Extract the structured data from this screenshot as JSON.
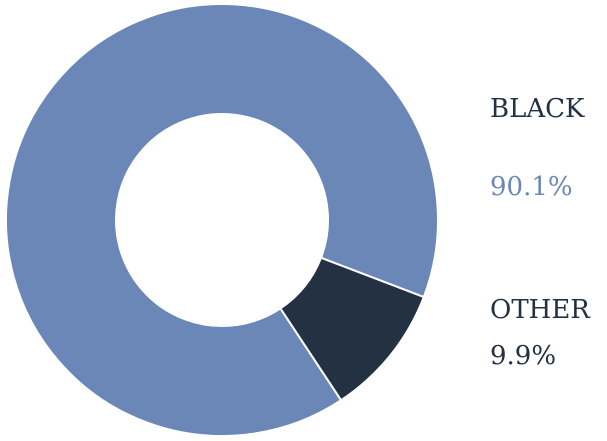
{
  "chart_data": {
    "type": "pie",
    "categories": [
      "BLACK",
      "OTHER"
    ],
    "values": [
      90.1,
      9.9
    ],
    "value_labels": [
      "90.1%",
      "9.9%"
    ],
    "colors": [
      "#6b87b8",
      "#233142"
    ],
    "label_colors": {
      "name": "#233142",
      "value": [
        "#6b87b8",
        "#233142"
      ]
    },
    "donut": true,
    "legend": "right",
    "title": ""
  }
}
